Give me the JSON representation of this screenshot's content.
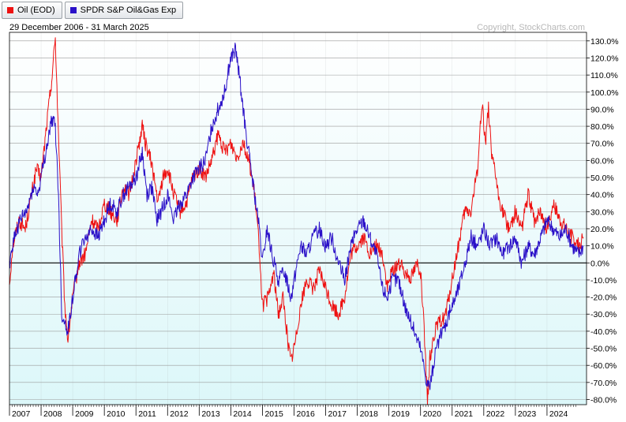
{
  "legend": {
    "items": [
      {
        "label": "Oil (EOD)",
        "color": "#ee1111"
      },
      {
        "label": "SPDR S&P Oil&Gas Exp",
        "color": "#2a10c8"
      }
    ]
  },
  "header": {
    "date_range": "29 December 2006 - 31 March 2025",
    "copyright": "Copyright, StockCharts.com"
  },
  "colors": {
    "oil": "#ee1111",
    "spdr": "#2a10c8",
    "background_top": "#ffffff",
    "background_bottom": "#dcf7f9",
    "grid": "#9a9a9a",
    "zero_line": "#000000"
  },
  "chart_data": {
    "type": "line",
    "title": "",
    "xlabel": "",
    "ylabel": "",
    "ylim": [
      -83,
      135
    ],
    "xlim": [
      2007.0,
      2025.25
    ],
    "y_ticks": [
      "130.0%",
      "120.0%",
      "110.0%",
      "100.0%",
      "90.0%",
      "80.0%",
      "70.0%",
      "60.0%",
      "50.0%",
      "40.0%",
      "30.0%",
      "20.0%",
      "10.0%",
      "0.0%",
      "-10.0%",
      "-20.0%",
      "-30.0%",
      "-40.0%",
      "-50.0%",
      "-60.0%",
      "-70.0%",
      "-80.0%"
    ],
    "x_ticks": [
      "2007",
      "2008",
      "2009",
      "2010",
      "2011",
      "2012",
      "2013",
      "2014",
      "2015",
      "2016",
      "2017",
      "2018",
      "2019",
      "2020",
      "2021",
      "2022",
      "2023",
      "2024"
    ],
    "y_axis_position": "right",
    "grid": true,
    "legend_position": "top-left",
    "series": [
      {
        "name": "Oil (EOD)",
        "color": "#ee1111",
        "x": [
          2007.0,
          2007.1,
          2007.3,
          2007.5,
          2007.7,
          2007.85,
          2008.0,
          2008.2,
          2008.35,
          2008.45,
          2008.55,
          2008.65,
          2008.75,
          2008.85,
          2009.0,
          2009.2,
          2009.4,
          2009.6,
          2009.8,
          2010.0,
          2010.2,
          2010.4,
          2010.6,
          2010.8,
          2011.0,
          2011.2,
          2011.3,
          2011.5,
          2011.7,
          2011.85,
          2012.0,
          2012.2,
          2012.4,
          2012.6,
          2012.8,
          2013.0,
          2013.2,
          2013.4,
          2013.6,
          2013.8,
          2014.0,
          2014.2,
          2014.4,
          2014.5,
          2014.6,
          2014.75,
          2014.9,
          2015.0,
          2015.2,
          2015.35,
          2015.5,
          2015.65,
          2015.8,
          2015.9,
          2016.05,
          2016.2,
          2016.4,
          2016.6,
          2016.8,
          2017.0,
          2017.2,
          2017.4,
          2017.6,
          2017.8,
          2018.0,
          2018.2,
          2018.4,
          2018.6,
          2018.8,
          2018.95,
          2019.1,
          2019.3,
          2019.5,
          2019.7,
          2019.9,
          2020.0,
          2020.1,
          2020.22,
          2020.3,
          2020.45,
          2020.6,
          2020.8,
          2021.0,
          2021.2,
          2021.4,
          2021.6,
          2021.8,
          2021.95,
          2022.05,
          2022.15,
          2022.25,
          2022.35,
          2022.45,
          2022.6,
          2022.8,
          2023.0,
          2023.2,
          2023.4,
          2023.6,
          2023.8,
          2024.0,
          2024.2,
          2024.4,
          2024.6,
          2024.8,
          2025.0,
          2025.15
        ],
        "values": [
          -12,
          10,
          25,
          20,
          40,
          55,
          50,
          85,
          110,
          132,
          75,
          20,
          -25,
          -45,
          -20,
          0,
          5,
          25,
          20,
          35,
          30,
          25,
          45,
          40,
          60,
          80,
          70,
          58,
          35,
          50,
          55,
          40,
          30,
          35,
          50,
          55,
          50,
          60,
          75,
          65,
          70,
          62,
          72,
          62,
          58,
          40,
          10,
          -25,
          -20,
          -5,
          -30,
          -20,
          -45,
          -58,
          -45,
          -25,
          -10,
          -15,
          -5,
          -15,
          -25,
          -30,
          -20,
          5,
          10,
          15,
          5,
          10,
          5,
          -15,
          -5,
          0,
          -5,
          -8,
          0,
          -5,
          -35,
          -82,
          -55,
          -40,
          -35,
          -30,
          -10,
          10,
          30,
          30,
          55,
          95,
          70,
          92,
          60,
          55,
          40,
          30,
          20,
          30,
          20,
          40,
          25,
          30,
          20,
          35,
          25,
          20,
          15,
          10,
          15
        ]
      },
      {
        "name": "SPDR S&P Oil&Gas Exp",
        "color": "#2a10c8",
        "x": [
          2007.0,
          2007.15,
          2007.35,
          2007.55,
          2007.75,
          2007.9,
          2008.05,
          2008.2,
          2008.35,
          2008.45,
          2008.55,
          2008.65,
          2008.75,
          2008.85,
          2009.0,
          2009.2,
          2009.4,
          2009.6,
          2009.8,
          2010.0,
          2010.2,
          2010.4,
          2010.6,
          2010.8,
          2011.0,
          2011.2,
          2011.35,
          2011.5,
          2011.65,
          2011.8,
          2012.0,
          2012.2,
          2012.4,
          2012.6,
          2012.8,
          2013.0,
          2013.2,
          2013.4,
          2013.6,
          2013.8,
          2014.0,
          2014.15,
          2014.3,
          2014.45,
          2014.6,
          2014.75,
          2014.9,
          2015.0,
          2015.15,
          2015.3,
          2015.5,
          2015.7,
          2015.9,
          2016.05,
          2016.2,
          2016.4,
          2016.6,
          2016.8,
          2017.0,
          2017.2,
          2017.4,
          2017.6,
          2017.8,
          2018.0,
          2018.2,
          2018.4,
          2018.6,
          2018.8,
          2018.95,
          2019.1,
          2019.3,
          2019.5,
          2019.7,
          2019.9,
          2020.0,
          2020.1,
          2020.2,
          2020.3,
          2020.45,
          2020.6,
          2020.8,
          2021.0,
          2021.2,
          2021.4,
          2021.6,
          2021.8,
          2022.0,
          2022.2,
          2022.4,
          2022.6,
          2022.8,
          2023.0,
          2023.2,
          2023.4,
          2023.6,
          2023.8,
          2024.0,
          2024.2,
          2024.4,
          2024.6,
          2024.8,
          2025.0,
          2025.15
        ],
        "values": [
          0,
          15,
          25,
          30,
          45,
          40,
          55,
          70,
          85,
          80,
          40,
          -30,
          -35,
          -40,
          -20,
          5,
          15,
          20,
          15,
          25,
          35,
          30,
          40,
          45,
          50,
          65,
          40,
          45,
          25,
          30,
          40,
          25,
          35,
          40,
          50,
          55,
          60,
          80,
          90,
          100,
          120,
          125,
          105,
          80,
          60,
          40,
          20,
          0,
          20,
          5,
          -10,
          -5,
          -20,
          -5,
          10,
          5,
          15,
          20,
          10,
          15,
          0,
          -10,
          10,
          20,
          25,
          15,
          5,
          -15,
          -20,
          -10,
          -10,
          -25,
          -35,
          -45,
          -50,
          -60,
          -70,
          -72,
          -55,
          -45,
          -35,
          -25,
          -15,
          0,
          15,
          10,
          20,
          10,
          15,
          5,
          10,
          15,
          0,
          10,
          5,
          15,
          25,
          20,
          15,
          20,
          10,
          5,
          10
        ]
      }
    ]
  }
}
